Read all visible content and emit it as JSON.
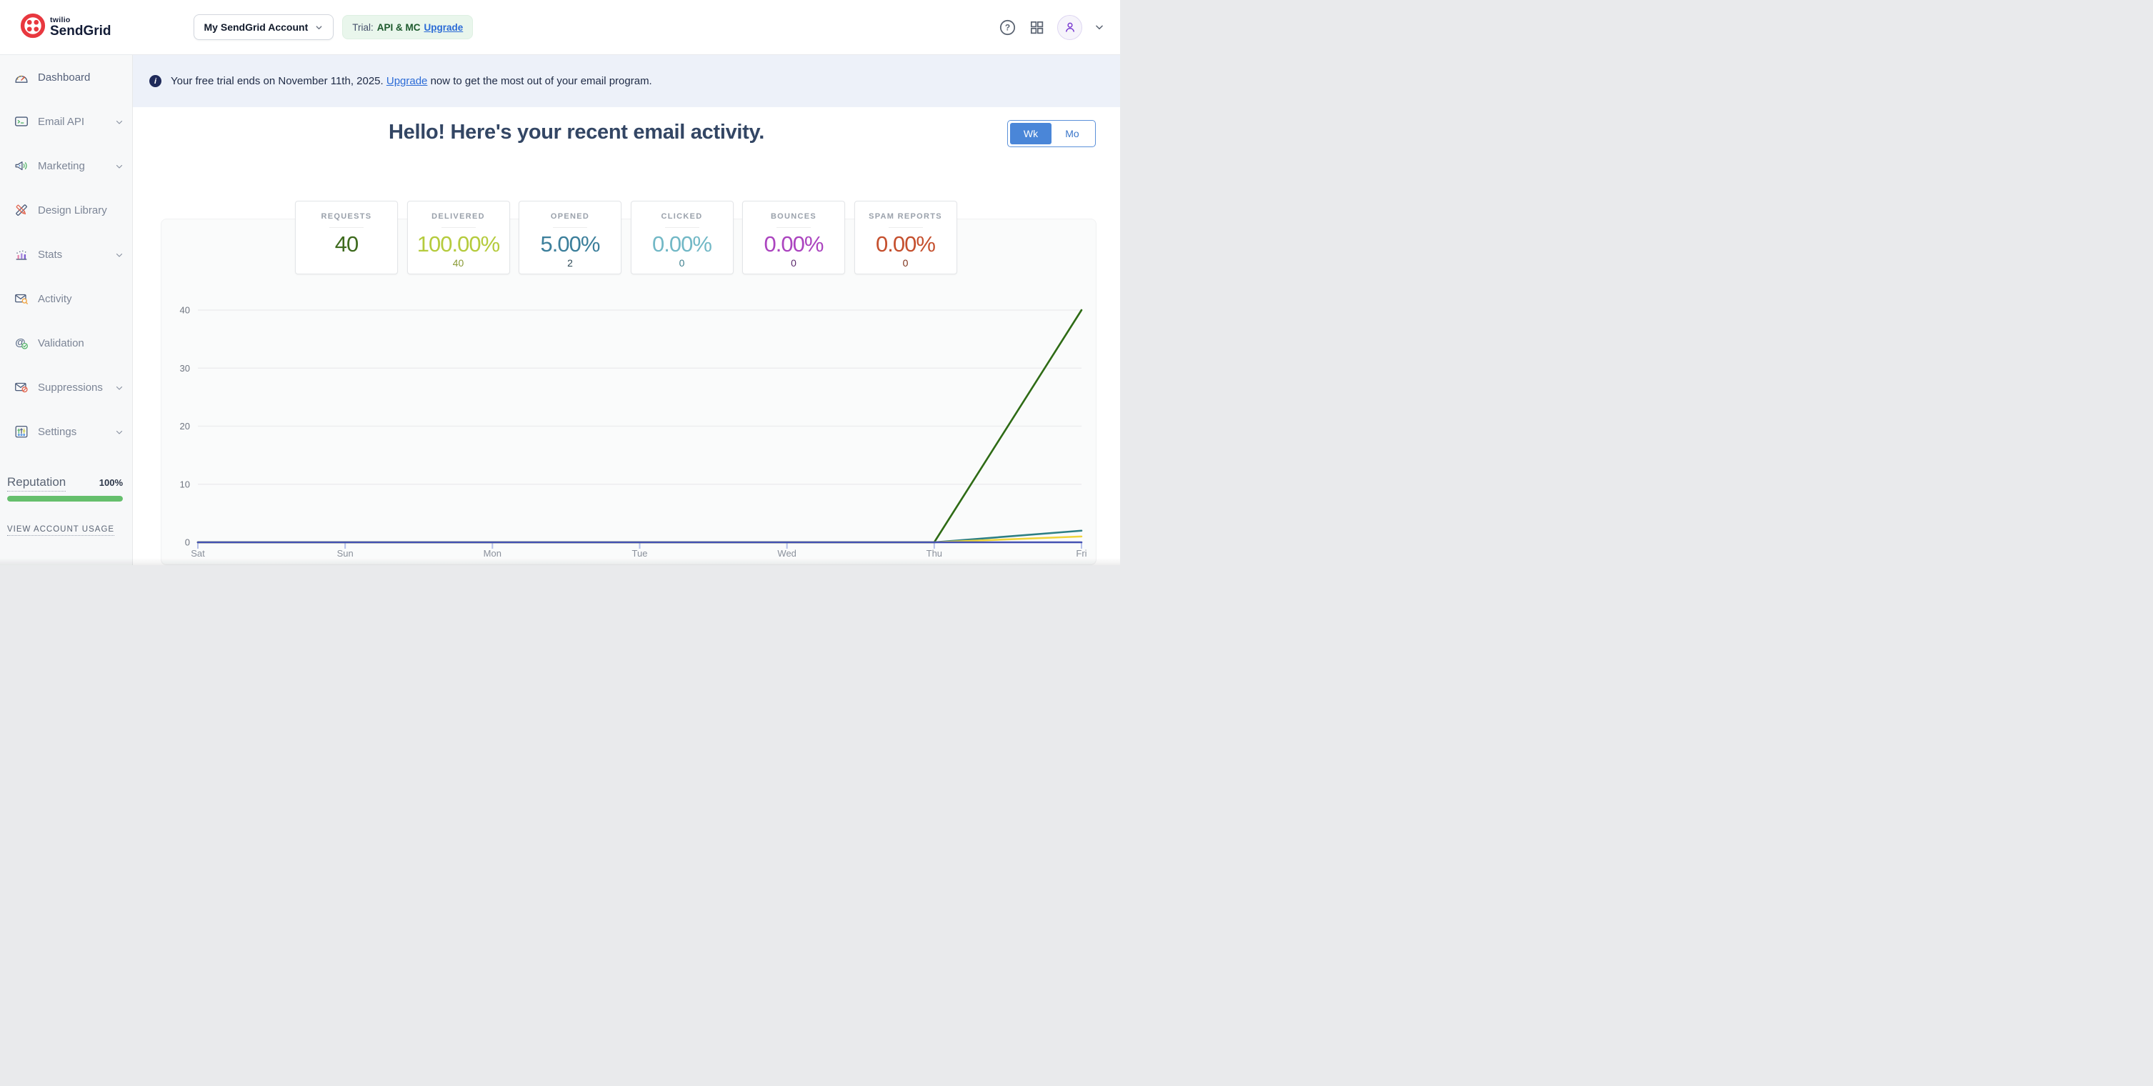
{
  "header": {
    "brand": {
      "company": "twilio",
      "product": "SendGrid"
    },
    "account_selector": "My SendGrid Account",
    "trial": {
      "prefix": "Trial:",
      "plan": "API & MC",
      "upgrade_label": "Upgrade"
    },
    "icons": [
      "help-icon",
      "apps-grid-icon",
      "user-avatar-icon",
      "chevron-down-icon"
    ]
  },
  "sidebar": {
    "items": [
      {
        "label": "Dashboard",
        "expandable": false
      },
      {
        "label": "Email API",
        "expandable": true
      },
      {
        "label": "Marketing",
        "expandable": true
      },
      {
        "label": "Design Library",
        "expandable": false
      },
      {
        "label": "Stats",
        "expandable": true
      },
      {
        "label": "Activity",
        "expandable": false
      },
      {
        "label": "Validation",
        "expandable": false
      },
      {
        "label": "Suppressions",
        "expandable": true
      },
      {
        "label": "Settings",
        "expandable": true
      }
    ],
    "reputation": {
      "label": "Reputation",
      "value": "100%",
      "percent": 100,
      "bar_color": "#65bf6c"
    },
    "view_account_usage": "VIEW ACCOUNT USAGE"
  },
  "banner": {
    "text_before": "Your free trial ends on November 11th, 2025. ",
    "link": "Upgrade",
    "text_after": " now to get the most out of your email program."
  },
  "main": {
    "title": "Hello! Here's your recent email activity.",
    "toggle": {
      "week": "Wk",
      "month": "Mo",
      "selected": "Wk"
    },
    "cards": [
      {
        "label": "REQUESTS",
        "value": "40",
        "sub": "",
        "value_color": "#3e6b1e",
        "sub_color": ""
      },
      {
        "label": "DELIVERED",
        "value": "100.00%",
        "sub": "40",
        "value_color": "#b5cb3d",
        "sub_color": "#8a9b36"
      },
      {
        "label": "OPENED",
        "value": "5.00%",
        "sub": "2",
        "value_color": "#3c7f9b",
        "sub_color": "#2e4a57"
      },
      {
        "label": "CLICKED",
        "value": "0.00%",
        "sub": "0",
        "value_color": "#72b8c6",
        "sub_color": "#3d7f8e"
      },
      {
        "label": "BOUNCES",
        "value": "0.00%",
        "sub": "0",
        "value_color": "#ab44bf",
        "sub_color": "#5c2a6e"
      },
      {
        "label": "SPAM REPORTS",
        "value": "0.00%",
        "sub": "0",
        "value_color": "#c5502e",
        "sub_color": "#7e3018"
      }
    ]
  },
  "chart_data": {
    "type": "line",
    "categories": [
      "Sat",
      "Sun",
      "Mon",
      "Tue",
      "Wed",
      "Thu",
      "Fri"
    ],
    "series": [
      {
        "name": "requests-delivered-green",
        "color": "#2e6b15",
        "values": [
          0,
          0,
          0,
          0,
          0,
          0,
          40
        ]
      },
      {
        "name": "opened-teal",
        "color": "#2d7f84",
        "values": [
          0,
          0,
          0,
          0,
          0,
          0,
          2
        ]
      },
      {
        "name": "yellow-line",
        "color": "#f0d53c",
        "values": [
          0,
          0,
          0,
          0,
          0,
          0,
          1
        ]
      },
      {
        "name": "indigo-baseline",
        "color": "#4351b2",
        "values": [
          0,
          0,
          0,
          0,
          0,
          0,
          0
        ]
      }
    ],
    "ylim": [
      0,
      40
    ],
    "yticks": [
      0,
      10,
      20,
      30,
      40
    ],
    "grid": true,
    "legend": "none"
  },
  "colors": {
    "accent_blue": "#4a86d8",
    "banner_bg": "#edf1f9",
    "trial_badge_bg": "#e9f6ec",
    "brand_red": "#e8383f",
    "brand_ink": "#131c36",
    "reputation_green": "#65bf6c"
  }
}
